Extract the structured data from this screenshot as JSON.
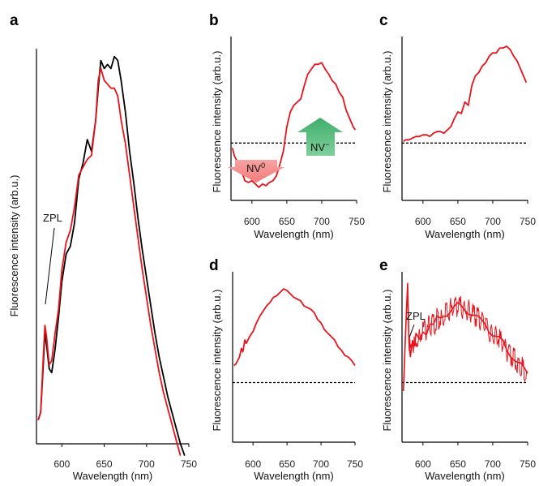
{
  "chart_data": [
    {
      "panel": "a",
      "type": "line",
      "xlabel": "Wavelength (nm)",
      "ylabel": "Fluorescence intensity (arb.u.)",
      "xticks": [
        600,
        650,
        700,
        750
      ],
      "xlim": [
        570,
        750
      ],
      "ylim": [
        0,
        1
      ],
      "annotation": "ZPL",
      "series": [
        {
          "color": "#000000",
          "x": [
            572,
            575,
            578,
            580,
            582,
            585,
            588,
            592,
            596,
            600,
            605,
            610,
            615,
            620,
            625,
            630,
            635,
            640,
            643,
            646,
            650,
            654,
            658,
            662,
            666,
            670,
            675,
            680,
            685,
            690,
            695,
            700,
            705,
            710,
            715,
            720,
            725,
            730,
            735,
            740,
            745
          ],
          "y": [
            0.06,
            0.08,
            0.2,
            0.28,
            0.25,
            0.19,
            0.18,
            0.24,
            0.32,
            0.41,
            0.48,
            0.5,
            0.56,
            0.67,
            0.71,
            0.77,
            0.74,
            0.82,
            0.9,
            0.97,
            0.95,
            0.96,
            0.95,
            0.98,
            0.97,
            0.92,
            0.84,
            0.74,
            0.66,
            0.57,
            0.49,
            0.42,
            0.35,
            0.28,
            0.22,
            0.17,
            0.12,
            0.08,
            0.04,
            0.0,
            -0.03
          ]
        },
        {
          "color": "#e8131b",
          "x": [
            572,
            575,
            578,
            580,
            582,
            585,
            588,
            592,
            596,
            600,
            605,
            610,
            615,
            620,
            625,
            630,
            635,
            640,
            643,
            646,
            650,
            654,
            658,
            662,
            666,
            670,
            675,
            680,
            685,
            690,
            695,
            700,
            705,
            710,
            715,
            720,
            725,
            730,
            735,
            740
          ],
          "y": [
            0.06,
            0.08,
            0.22,
            0.3,
            0.27,
            0.2,
            0.21,
            0.28,
            0.34,
            0.44,
            0.51,
            0.54,
            0.6,
            0.68,
            0.7,
            0.72,
            0.73,
            0.82,
            0.92,
            0.95,
            0.92,
            0.91,
            0.9,
            0.9,
            0.88,
            0.82,
            0.76,
            0.68,
            0.6,
            0.52,
            0.44,
            0.37,
            0.3,
            0.24,
            0.18,
            0.13,
            0.09,
            0.05,
            0.01,
            -0.03
          ]
        }
      ]
    },
    {
      "panel": "b",
      "type": "line",
      "xlabel": "Wavelength (nm)",
      "ylabel": "Fluorescence intensity (arb.u.)",
      "xticks": [
        600,
        650,
        700,
        750
      ],
      "xlim": [
        570,
        750
      ],
      "ylim": [
        0,
        1
      ],
      "baseline": 0.35,
      "annotations": [
        "NV0",
        "NV−"
      ],
      "series": [
        {
          "color": "#e8131b",
          "x": [
            572,
            575,
            580,
            585,
            590,
            595,
            600,
            605,
            610,
            615,
            620,
            625,
            630,
            635,
            640,
            645,
            650,
            655,
            660,
            665,
            670,
            675,
            680,
            685,
            690,
            695,
            700,
            705,
            710,
            715,
            720,
            725,
            730,
            735,
            740,
            745,
            748
          ],
          "y": [
            0.32,
            0.27,
            0.23,
            0.18,
            0.12,
            0.11,
            0.12,
            0.1,
            0.08,
            0.1,
            0.09,
            0.11,
            0.12,
            0.15,
            0.22,
            0.3,
            0.45,
            0.54,
            0.58,
            0.6,
            0.62,
            0.7,
            0.77,
            0.8,
            0.83,
            0.83,
            0.84,
            0.8,
            0.77,
            0.73,
            0.71,
            0.66,
            0.63,
            0.55,
            0.5,
            0.45,
            0.43
          ]
        }
      ]
    },
    {
      "panel": "c",
      "type": "line",
      "xlabel": "Wavelength (nm)",
      "xticks": [
        600,
        650,
        700,
        750
      ],
      "xlim": [
        570,
        750
      ],
      "ylim": [
        0,
        1
      ],
      "baseline": 0.35,
      "series": [
        {
          "color": "#e8131b",
          "x": [
            572,
            575,
            580,
            585,
            590,
            595,
            600,
            605,
            610,
            615,
            620,
            625,
            630,
            635,
            640,
            645,
            650,
            655,
            660,
            665,
            670,
            675,
            680,
            685,
            690,
            695,
            700,
            705,
            710,
            715,
            720,
            725,
            730,
            735,
            740,
            745,
            748
          ],
          "y": [
            0.36,
            0.37,
            0.37,
            0.38,
            0.39,
            0.39,
            0.4,
            0.4,
            0.39,
            0.41,
            0.42,
            0.42,
            0.41,
            0.43,
            0.45,
            0.5,
            0.54,
            0.53,
            0.6,
            0.58,
            0.7,
            0.76,
            0.78,
            0.82,
            0.84,
            0.88,
            0.9,
            0.9,
            0.93,
            0.93,
            0.94,
            0.92,
            0.88,
            0.85,
            0.8,
            0.75,
            0.72
          ]
        }
      ]
    },
    {
      "panel": "d",
      "type": "line",
      "ylabel": "Fluorescence intensity (arb.u.)",
      "xlabel": "Wavelength (nm)",
      "xticks": [
        600,
        650,
        700,
        750
      ],
      "xlim": [
        570,
        750
      ],
      "ylim": [
        0,
        1
      ],
      "baseline": 0.35,
      "series": [
        {
          "color": "#e8131b",
          "x": [
            572,
            575,
            580,
            583,
            585,
            588,
            590,
            595,
            600,
            605,
            610,
            615,
            620,
            625,
            630,
            635,
            640,
            645,
            650,
            655,
            660,
            665,
            670,
            675,
            680,
            685,
            690,
            695,
            700,
            705,
            710,
            715,
            720,
            725,
            730,
            735,
            740,
            745,
            750
          ],
          "y": [
            0.45,
            0.46,
            0.5,
            0.55,
            0.53,
            0.6,
            0.58,
            0.62,
            0.65,
            0.7,
            0.74,
            0.77,
            0.8,
            0.82,
            0.85,
            0.86,
            0.88,
            0.9,
            0.89,
            0.87,
            0.85,
            0.84,
            0.83,
            0.8,
            0.79,
            0.78,
            0.76,
            0.72,
            0.7,
            0.66,
            0.64,
            0.62,
            0.6,
            0.56,
            0.54,
            0.51,
            0.5,
            0.48,
            0.45
          ]
        }
      ]
    },
    {
      "panel": "e",
      "type": "line",
      "xlabel": "Wavelength (nm)",
      "xticks": [
        600,
        650,
        700,
        750
      ],
      "xlim": [
        570,
        750
      ],
      "ylim": [
        0,
        1
      ],
      "baseline": 0.35,
      "annotation": "ZPL",
      "series": [
        {
          "color": "#e8131b",
          "x": [
            572,
            574,
            576,
            578,
            580,
            582,
            585,
            588,
            590,
            595,
            600,
            605,
            610,
            615,
            620,
            625,
            630,
            635,
            640,
            645,
            650,
            655,
            660,
            665,
            670,
            675,
            680,
            685,
            690,
            695,
            700,
            705,
            710,
            715,
            720,
            725,
            730,
            735,
            740,
            745,
            750
          ],
          "y": [
            0.3,
            0.5,
            0.72,
            0.93,
            0.6,
            0.52,
            0.6,
            0.55,
            0.62,
            0.6,
            0.66,
            0.65,
            0.7,
            0.68,
            0.72,
            0.72,
            0.75,
            0.76,
            0.78,
            0.79,
            0.8,
            0.79,
            0.78,
            0.77,
            0.76,
            0.74,
            0.72,
            0.7,
            0.69,
            0.66,
            0.64,
            0.62,
            0.6,
            0.58,
            0.54,
            0.52,
            0.5,
            0.47,
            0.45,
            0.42,
            0.4
          ]
        }
      ]
    }
  ]
}
